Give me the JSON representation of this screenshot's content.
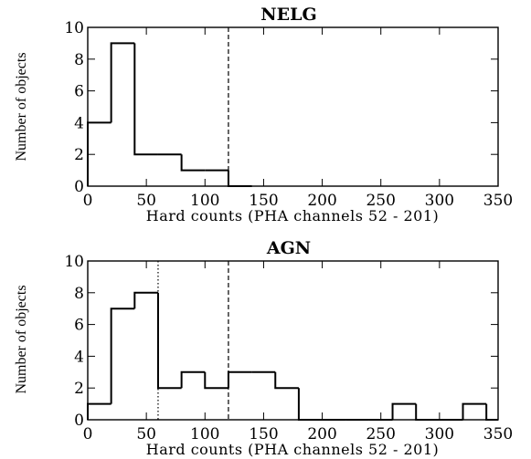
{
  "chart_data": [
    {
      "type": "histogram",
      "title": "NELG",
      "xlabel": "Hard counts (PHA channels 52 - 201)",
      "ylabel": "Number of objects",
      "xlim": [
        0,
        350
      ],
      "ylim": [
        0,
        10
      ],
      "xticks": [
        0,
        50,
        100,
        150,
        200,
        250,
        300,
        350
      ],
      "yticks": [
        0,
        2,
        4,
        6,
        8,
        10
      ],
      "bin_width": 20,
      "bins": [
        {
          "x0": 0,
          "x1": 20,
          "count": 4
        },
        {
          "x0": 20,
          "x1": 40,
          "count": 9
        },
        {
          "x0": 40,
          "x1": 60,
          "count": 2
        },
        {
          "x0": 60,
          "x1": 80,
          "count": 2
        },
        {
          "x0": 80,
          "x1": 100,
          "count": 1
        },
        {
          "x0": 100,
          "x1": 120,
          "count": 1
        },
        {
          "x0": 120,
          "x1": 140,
          "count": 0
        }
      ],
      "reference_lines": [
        {
          "x": 120,
          "style": "dashed"
        }
      ]
    },
    {
      "type": "histogram",
      "title": "AGN",
      "xlabel": "Hard counts (PHA channels 52 - 201)",
      "ylabel": "Number of objects",
      "xlim": [
        0,
        350
      ],
      "ylim": [
        0,
        10
      ],
      "xticks": [
        0,
        50,
        100,
        150,
        200,
        250,
        300,
        350
      ],
      "yticks": [
        0,
        2,
        4,
        6,
        8,
        10
      ],
      "bin_width": 20,
      "bins": [
        {
          "x0": 0,
          "x1": 20,
          "count": 1
        },
        {
          "x0": 20,
          "x1": 40,
          "count": 7
        },
        {
          "x0": 40,
          "x1": 60,
          "count": 8
        },
        {
          "x0": 60,
          "x1": 80,
          "count": 2
        },
        {
          "x0": 80,
          "x1": 100,
          "count": 3
        },
        {
          "x0": 100,
          "x1": 120,
          "count": 2
        },
        {
          "x0": 120,
          "x1": 140,
          "count": 3
        },
        {
          "x0": 140,
          "x1": 160,
          "count": 3
        },
        {
          "x0": 160,
          "x1": 180,
          "count": 2
        },
        {
          "x0": 180,
          "x1": 200,
          "count": 0
        },
        {
          "x0": 200,
          "x1": 220,
          "count": 0
        },
        {
          "x0": 220,
          "x1": 240,
          "count": 0
        },
        {
          "x0": 240,
          "x1": 260,
          "count": 0
        },
        {
          "x0": 260,
          "x1": 280,
          "count": 1
        },
        {
          "x0": 280,
          "x1": 300,
          "count": 0
        },
        {
          "x0": 300,
          "x1": 320,
          "count": 0
        },
        {
          "x0": 320,
          "x1": 340,
          "count": 1
        },
        {
          "x0": 340,
          "x1": 350,
          "count": 0
        }
      ],
      "reference_lines": [
        {
          "x": 60,
          "style": "dotted"
        },
        {
          "x": 120,
          "style": "dashed"
        }
      ]
    }
  ]
}
